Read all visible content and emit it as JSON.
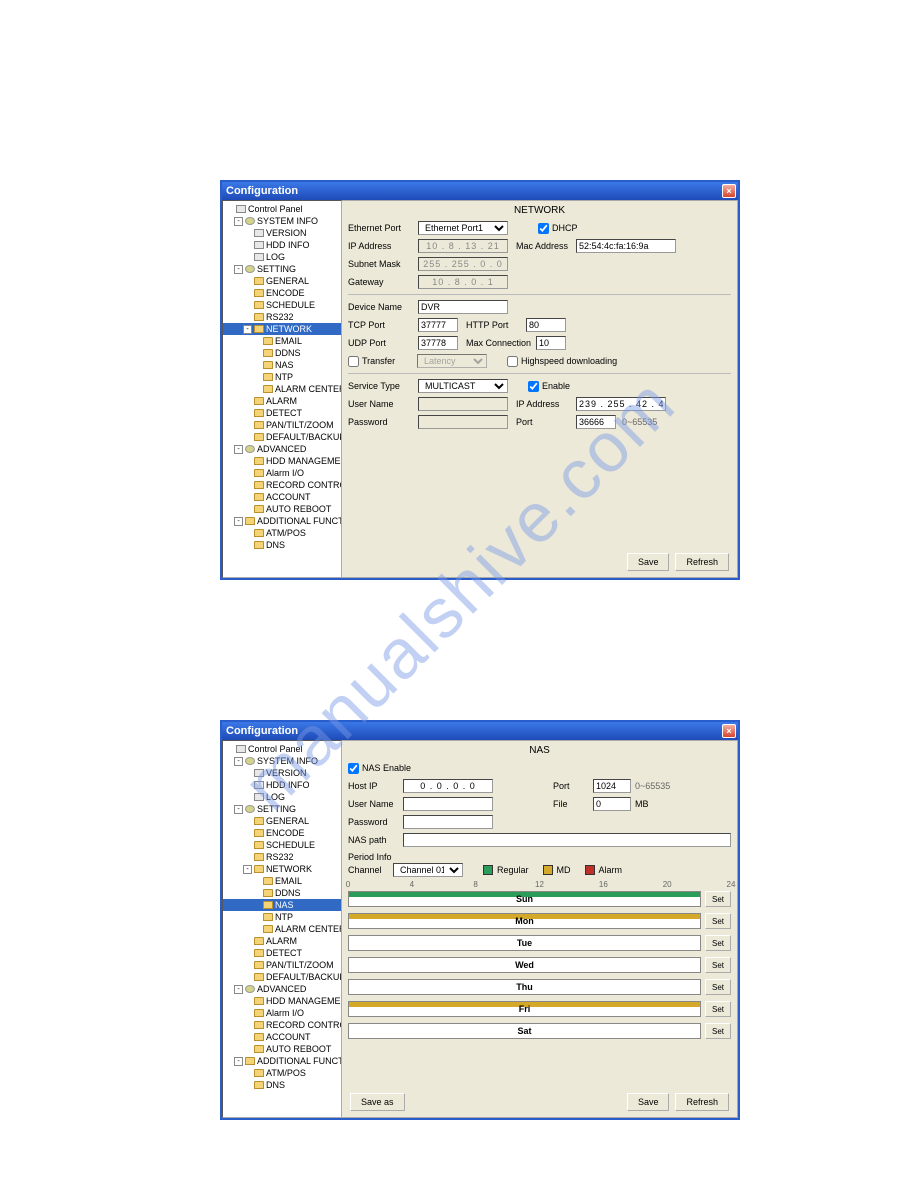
{
  "watermark_text": "manualshive.com",
  "window_title": "Configuration",
  "tree": {
    "root": "Control Panel",
    "system_info": "SYSTEM INFO",
    "version": "VERSION",
    "hdd_info": "HDD INFO",
    "log": "LOG",
    "setting": "SETTING",
    "general": "GENERAL",
    "encode": "ENCODE",
    "schedule": "SCHEDULE",
    "rs232": "RS232",
    "network": "NETWORK",
    "email": "EMAIL",
    "ddns": "DDNS",
    "nas": "NAS",
    "ntp": "NTP",
    "alarm_center": "ALARM CENTER",
    "alarm": "ALARM",
    "detect": "DETECT",
    "ptz": "PAN/TILT/ZOOM",
    "default_backup": "DEFAULT/BACKUP",
    "advanced": "ADVANCED",
    "hdd_mgmt": "HDD MANAGEMENT",
    "alarm_io": "Alarm I/O",
    "record_ctrl": "RECORD CONTROL",
    "account": "ACCOUNT",
    "auto_reboot": "AUTO REBOOT",
    "additional": "ADDITIONAL FUNCTION",
    "atm_pos": "ATM/POS",
    "dns": "DNS"
  },
  "network": {
    "title": "NETWORK",
    "ethernet_port_lbl": "Ethernet Port",
    "ethernet_port_val": "Ethernet Port1",
    "ip_address_lbl": "IP Address",
    "ip_val": "10 . 8 . 13 . 21",
    "subnet_lbl": "Subnet Mask",
    "subnet_val": "255 . 255 . 0 . 0",
    "gateway_lbl": "Gateway",
    "gateway_val": "10 . 8 . 0 . 1",
    "dhcp_lbl": "DHCP",
    "mac_lbl": "Mac Address",
    "mac_val": "52:54:4c:fa:16:9a",
    "device_name_lbl": "Device Name",
    "device_name_val": "DVR",
    "tcp_port_lbl": "TCP Port",
    "tcp_port_val": "37777",
    "http_port_lbl": "HTTP Port",
    "http_port_val": "80",
    "udp_port_lbl": "UDP Port",
    "udp_port_val": "37778",
    "max_conn_lbl": "Max Connection",
    "max_conn_val": "10",
    "transfer_lbl": "Transfer",
    "latency_val": "Latency",
    "highspeed_lbl": "Highspeed downloading",
    "service_type_lbl": "Service Type",
    "service_type_val": "MULTICAST",
    "enable_lbl": "Enable",
    "username_lbl": "User Name",
    "password_lbl": "Password",
    "svc_ip_lbl": "IP Address",
    "svc_ip_val": "239 . 255 . 42 . 42",
    "port_lbl": "Port",
    "port_val": "36666",
    "port_range": "0~65535"
  },
  "nas": {
    "title": "NAS",
    "enable_lbl": "NAS Enable",
    "host_ip_lbl": "Host IP",
    "host_ip_val": "0 . 0 . 0 . 0",
    "port_lbl": "Port",
    "port_val": "1024",
    "port_range": "0~65535",
    "file_lbl": "File",
    "file_val": "0",
    "file_unit": "MB",
    "username_lbl": "User Name",
    "password_lbl": "Password",
    "nas_path_lbl": "NAS path",
    "period_info_lbl": "Period Info",
    "channel_lbl": "Channel",
    "channel_val": "Channel 01",
    "legend_regular": "Regular",
    "legend_md": "MD",
    "legend_alarm": "Alarm",
    "color_regular": "#2a9d5a",
    "color_md": "#d4a828",
    "color_alarm": "#c03028",
    "scale": [
      "0",
      "4",
      "8",
      "12",
      "16",
      "20",
      "24"
    ],
    "days": [
      "Sun",
      "Mon",
      "Tue",
      "Wed",
      "Thu",
      "Fri",
      "Sat"
    ],
    "set_lbl": "Set"
  },
  "buttons": {
    "save": "Save",
    "refresh": "Refresh",
    "save_as": "Save as"
  }
}
